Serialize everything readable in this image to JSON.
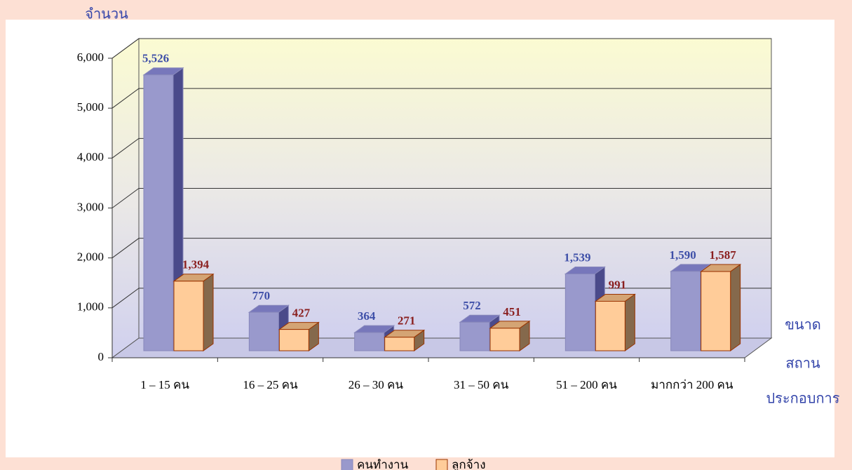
{
  "chart_data": {
    "type": "bar3d",
    "y_label": "จำนวน",
    "x_label_lines": [
      "ขนาด",
      "สถาน",
      "ประกอบการ"
    ],
    "categories": [
      "1 – 15 คน",
      "16 – 25 คน",
      "26 – 30 คน",
      "31 – 50 คน",
      "51 – 200 คน",
      "มากกว่า 200 คน"
    ],
    "series": [
      {
        "name": "คนทำงาน",
        "color": "#9999cc",
        "values": [
          5526,
          770,
          364,
          572,
          1539,
          1590
        ],
        "value_labels": [
          "5,526",
          "770",
          "364",
          "572",
          "1,539",
          "1,590"
        ]
      },
      {
        "name": "ลูกจ้าง",
        "color": "#ffcc99",
        "values": [
          1394,
          427,
          271,
          451,
          991,
          1587
        ],
        "value_labels": [
          "1,394",
          "427",
          "271",
          "451",
          "991",
          "1,587"
        ]
      }
    ],
    "ylim": [
      0,
      6000
    ],
    "yticks": [
      0,
      {
        "value": 1000,
        "label": "1,000"
      },
      {
        "value": 2000,
        "label": "2,000"
      },
      {
        "value": 3000,
        "label": "3,000"
      },
      {
        "value": 4000,
        "label": "4,000"
      },
      {
        "value": 5000,
        "label": "5,000"
      },
      {
        "value": 6000,
        "label": "6,000"
      }
    ],
    "grid": true
  }
}
